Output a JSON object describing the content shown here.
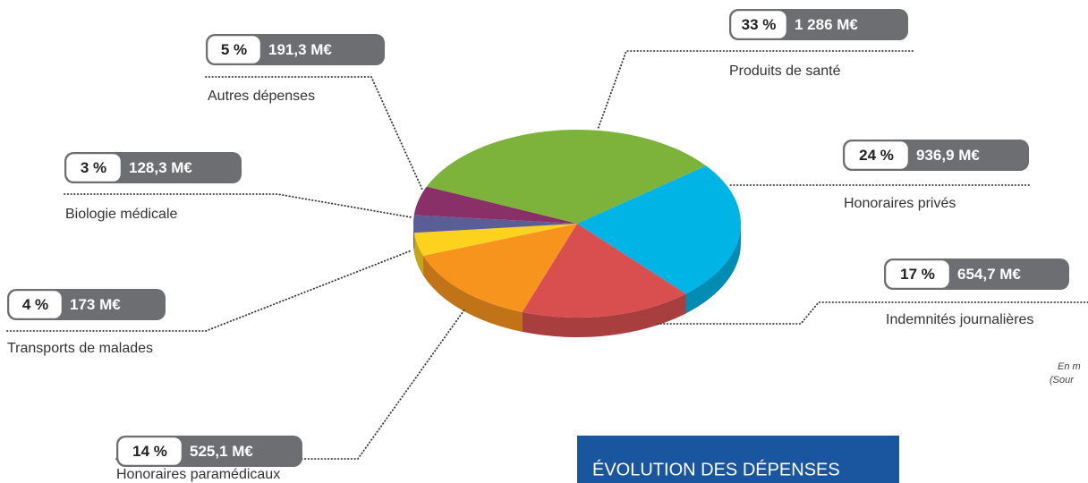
{
  "chart_data": {
    "type": "pie",
    "categories": [
      "Produits de santé",
      "Honoraires privés",
      "Indemnités journalières",
      "Honoraires paramédicaux",
      "Transports de malades",
      "Biologie médicale",
      "Autres dépenses"
    ],
    "values": [
      33,
      24,
      17,
      14,
      4,
      3,
      5
    ],
    "value_labels": [
      "33 %",
      "24 %",
      "17 %",
      "14 %",
      "4 %",
      "3 %",
      "5 %"
    ],
    "amounts": [
      1286,
      936.9,
      654.7,
      525.1,
      173,
      128.3,
      191.3
    ],
    "amount_labels": [
      "1 286 M€",
      "936,9 M€",
      "654,7 M€",
      "525,1 M€",
      "173 M€",
      "128,3 M€",
      "191,3 M€"
    ],
    "colors": [
      "#7db33a",
      "#00b4e6",
      "#d94f50",
      "#f7941d",
      "#fdd21f",
      "#5a5d96",
      "#8a3068"
    ],
    "notes": [
      "En m",
      "(Sour"
    ],
    "section_heading": "ÉVOLUTION DES DÉPENSES"
  }
}
